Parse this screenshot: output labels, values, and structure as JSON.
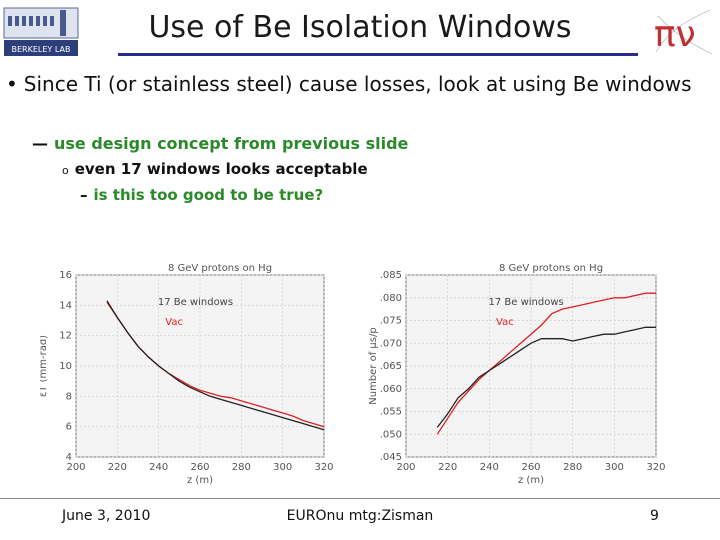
{
  "slide": {
    "title": "Use of Be Isolation Windows",
    "bullet1_marker": "•",
    "bullet1": "Since Ti (or stainless steel) cause losses, look at using Be windows",
    "bullet2_marker": "—",
    "bullet2": "use design concept from previous slide",
    "bullet3_marker": "o",
    "bullet3": "even 17 windows looks acceptable",
    "bullet4_marker": "–",
    "bullet4": "is this too good to be true?",
    "logo_left_text": "BERKELEY LAB",
    "logo_right_text": "πν"
  },
  "footer": {
    "date": "June 3, 2010",
    "center": "EUROnu mtg:Zisman",
    "page": "9"
  },
  "colors": {
    "accent_rule": "#2a2a8c",
    "green_text": "#2a8a2a",
    "series_be": "#222222",
    "series_vac": "#e02020"
  },
  "chart_data": [
    {
      "type": "line",
      "title": "8 GeV protons on Hg",
      "xlabel": "z (m)",
      "ylabel": "εT (mm-rad)",
      "xlim": [
        200,
        320
      ],
      "ylim": [
        4,
        16
      ],
      "xticks": [
        "200",
        "220",
        "240",
        "260",
        "280",
        "300",
        "320"
      ],
      "yticks": [
        "4",
        "6",
        "8",
        "10",
        "12",
        "14",
        "16"
      ],
      "series": [
        {
          "name": "17 Be windows",
          "x": [
            215,
            220,
            225,
            230,
            235,
            240,
            245,
            250,
            255,
            260,
            265,
            270,
            275,
            280,
            285,
            290,
            295,
            300,
            305,
            310,
            315,
            320
          ],
          "values": [
            14.3,
            13.2,
            12.2,
            11.3,
            10.6,
            10.0,
            9.5,
            9.0,
            8.6,
            8.3,
            8.0,
            7.8,
            7.6,
            7.4,
            7.2,
            7.0,
            6.8,
            6.6,
            6.4,
            6.2,
            6.0,
            5.8
          ]
        },
        {
          "name": "Vac",
          "x": [
            215,
            220,
            225,
            230,
            235,
            240,
            245,
            250,
            255,
            260,
            265,
            270,
            275,
            280,
            285,
            290,
            295,
            300,
            305,
            310,
            315,
            320
          ],
          "values": [
            14.2,
            13.2,
            12.2,
            11.3,
            10.6,
            10.0,
            9.5,
            9.1,
            8.7,
            8.4,
            8.2,
            8.0,
            7.9,
            7.7,
            7.5,
            7.3,
            7.1,
            6.9,
            6.7,
            6.4,
            6.2,
            6.0
          ]
        }
      ]
    },
    {
      "type": "line",
      "title": "8 GeV protons on Hg",
      "xlabel": "z (m)",
      "ylabel": "Number of μs/p",
      "xlim": [
        200,
        320
      ],
      "ylim": [
        0.045,
        0.085
      ],
      "xticks": [
        "200",
        "220",
        "240",
        "260",
        "280",
        "300",
        "320"
      ],
      "yticks": [
        ".045",
        ".050",
        ".055",
        ".060",
        ".065",
        ".070",
        ".075",
        ".080",
        ".085"
      ],
      "series": [
        {
          "name": "17 Be windows",
          "x": [
            215,
            220,
            225,
            230,
            235,
            240,
            245,
            250,
            255,
            260,
            265,
            270,
            275,
            280,
            285,
            290,
            295,
            300,
            305,
            310,
            315,
            320
          ],
          "values": [
            0.0515,
            0.0545,
            0.058,
            0.06,
            0.0625,
            0.064,
            0.0655,
            0.067,
            0.0685,
            0.07,
            0.071,
            0.071,
            0.071,
            0.0705,
            0.071,
            0.0715,
            0.072,
            0.072,
            0.0725,
            0.073,
            0.0735,
            0.0735
          ]
        },
        {
          "name": "Vac",
          "x": [
            215,
            220,
            225,
            230,
            235,
            240,
            245,
            250,
            255,
            260,
            265,
            270,
            275,
            280,
            285,
            290,
            295,
            300,
            305,
            310,
            315,
            320
          ],
          "values": [
            0.05,
            0.0535,
            0.057,
            0.0595,
            0.062,
            0.064,
            0.066,
            0.068,
            0.07,
            0.072,
            0.074,
            0.0765,
            0.0775,
            0.078,
            0.0785,
            0.079,
            0.0795,
            0.08,
            0.08,
            0.0805,
            0.081,
            0.081
          ]
        }
      ]
    }
  ]
}
